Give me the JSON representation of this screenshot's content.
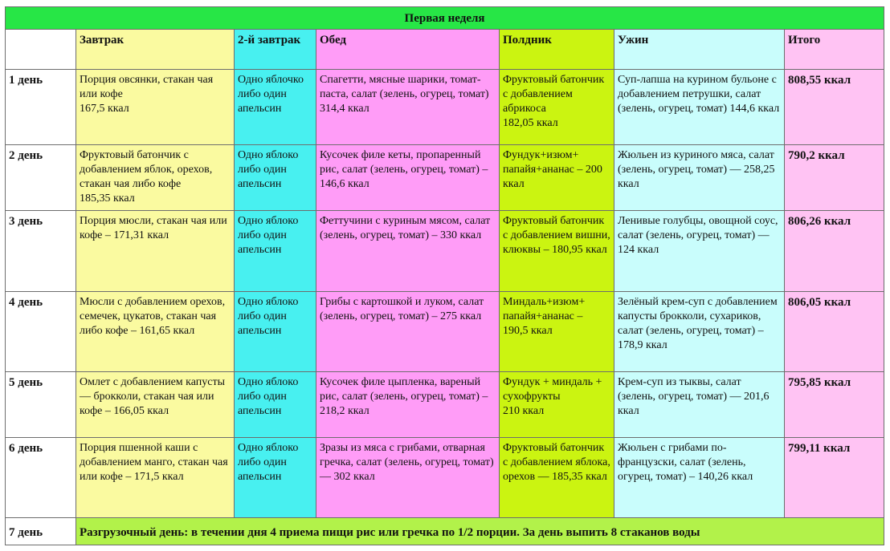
{
  "title": "Первая неделя",
  "headers": [
    "",
    "Завтрак",
    "2-й завтрак",
    "Обед",
    "Полдник",
    "Ужин",
    "Итого"
  ],
  "rows": [
    {
      "day": "1 день",
      "breakfast": "Порция овсянки, стакан чая или кофе\n167,5 ккал",
      "second_breakfast": "Одно яблочко либо один апельсин",
      "lunch": "Спагетти, мясные шарики, томат-паста, салат (зелень, огурец, томат)\n 314,4 ккал",
      "snack": "Фруктовый батончик с добавлением абрикоса\n182,05 ккал",
      "dinner": "Суп-лапша на курином бульоне с добавлением петрушки, салат (зелень, огурец, томат) 144,6 ккал",
      "total": "808,55 ккал"
    },
    {
      "day": "2 день",
      "breakfast": "Фруктовый батончик с добавлением яблок, орехов, стакан чая либо кофе\n185,35 ккал",
      "second_breakfast": "Одно яблоко либо один апельсин",
      "lunch": "Кусочек филе кеты, пропаренный рис, салат (зелень, огурец, томат) – 146,6 ккал",
      "snack": "Фундук+изюм+ папайя+ананас – 200 ккал",
      "dinner": "Жюльен из куриного мяса, салат (зелень, огурец, томат) — 258,25 ккал",
      "total": "790,2 ккал"
    },
    {
      "day": "3 день",
      "breakfast": "Порция мюсли, стакан чая или кофе – 171,31 ккал",
      "second_breakfast": "Одно яблоко либо один апельсин",
      "lunch": "Феттучини с куриным мясом, салат (зелень, огурец, томат) – 330 ккал",
      "snack": "Фруктовый батончик с добавлением вишни, клюквы – 180,95 ккал",
      "dinner": "Ленивые голубцы, овощной соус, салат (зелень, огурец, томат) — 124 ккал",
      "total": "806,26 ккал"
    },
    {
      "day": "4 день",
      "breakfast": "Мюсли с добавлением орехов, семечек, цукатов, стакан чая либо кофе – 161,65 ккал",
      "second_breakfast": "Одно яблоко либо один апельсин",
      "lunch": "Грибы с картошкой и луком, салат (зелень, огурец, томат) – 275 ккал",
      "snack": "Миндаль+изюм+ папайя+ананас – 190,5 ккал",
      "dinner": "Зелёный крем-суп с добавлением капусты брокколи, сухариков, салат (зелень, огурец, томат) – 178,9 ккал",
      "total": "806,05 ккал"
    },
    {
      "day": "5 день",
      "breakfast": "Омлет с добавлением капусты — брокколи, стакан чая или кофе – 166,05 ккал",
      "second_breakfast": "Одно яблоко либо один апельсин",
      "lunch": "Кусочек филе цыпленка, вареный рис, салат (зелень, огурец, томат) – 218,2 ккал",
      "snack": "Фундук + миндаль + сухофрукты\n210 ккал",
      "dinner": "Крем-суп из тыквы, салат (зелень, огурец, томат) — 201,6 ккал",
      "total": "795,85 ккал"
    },
    {
      "day": "6 день",
      "breakfast": "Порция пшенной каши с добавлением манго, стакан чая или кофе – 171,5 ккал",
      "second_breakfast": "Одно яблоко либо один апельсин",
      "lunch": "Зразы из мяса с грибами, отварная гречка, салат (зелень, огурец, томат) — 302 ккал",
      "snack": "Фруктовый батончик с добавлением яблока, орехов — 185,35 ккал",
      "dinner": "Жюльен с грибами по-французски, салат (зелень, огурец, томат) – 140,26 ккал",
      "total": "799,11 ккал"
    }
  ],
  "day7": {
    "day": "7 день",
    "text": "Разгрузочный день: в течении дня 4 приема пищи рис или гречка по 1/2 порции. За день выпить 8 стаканов воды"
  },
  "colors": {
    "title": "#27e646",
    "breakfast": "#fafaa0",
    "second_breakfast": "#48f0f0",
    "lunch": "#ff9cf7",
    "snack": "#cbf411",
    "dinner": "#c9fdfc",
    "total": "#ffc3f3",
    "fasting": "#b2f24a"
  }
}
